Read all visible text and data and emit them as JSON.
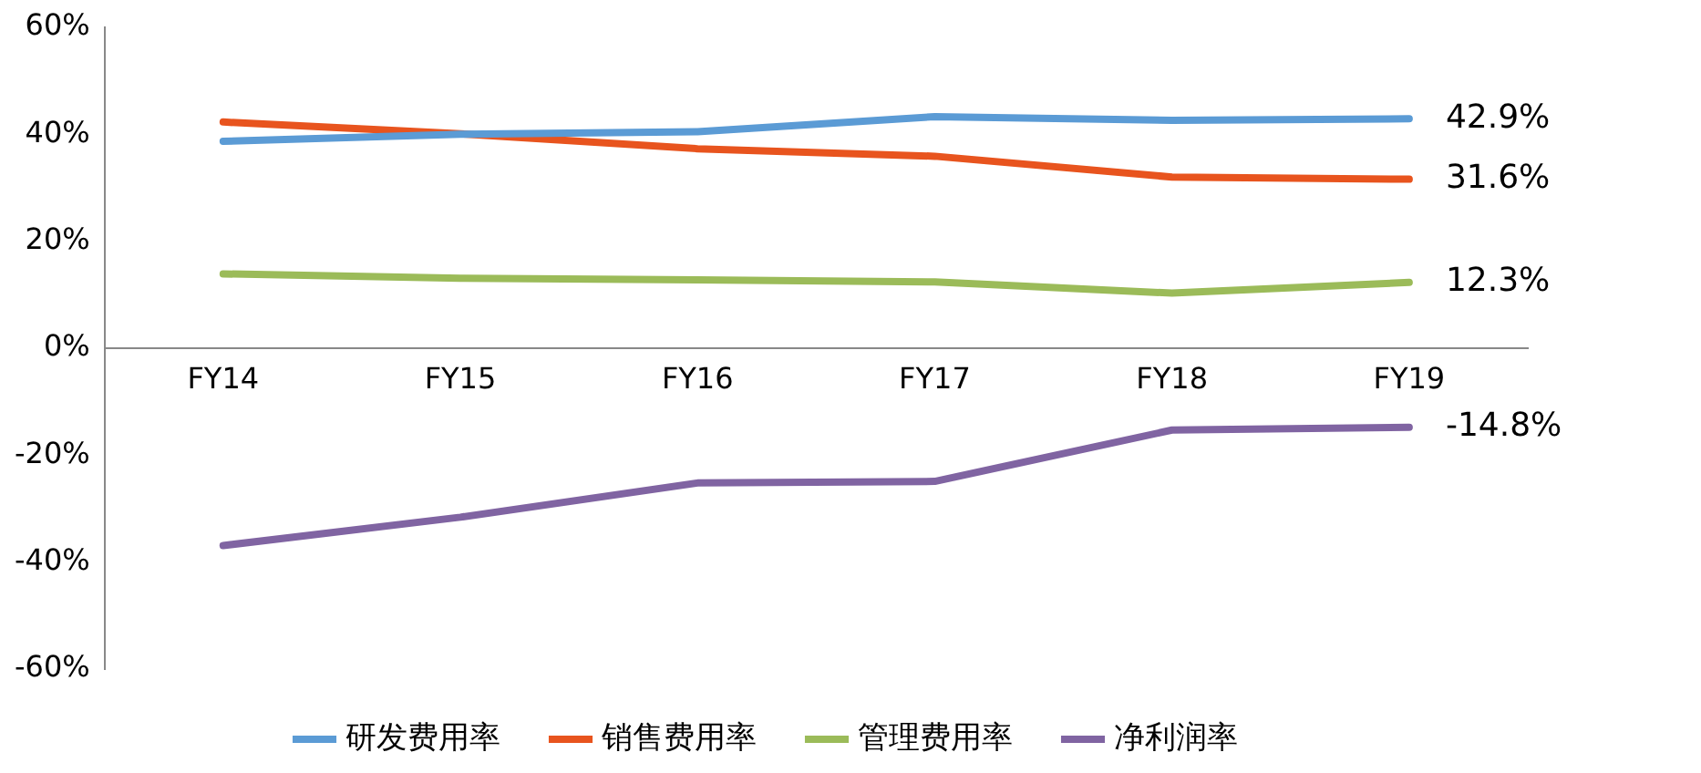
{
  "chart_data": {
    "type": "line",
    "categories": [
      "FY14",
      "FY15",
      "FY16",
      "FY17",
      "FY18",
      "FY19"
    ],
    "ylim": [
      -60,
      60
    ],
    "yticks": [
      {
        "value": -60,
        "label": "-60%"
      },
      {
        "value": -40,
        "label": "-40%"
      },
      {
        "value": -20,
        "label": "-20%"
      },
      {
        "value": 0,
        "label": "0%"
      },
      {
        "value": 20,
        "label": "20%"
      },
      {
        "value": 40,
        "label": "40%"
      },
      {
        "value": 60,
        "label": "60%"
      }
    ],
    "series": [
      {
        "name": "研发费用率",
        "color": "#5b9bd5",
        "values": [
          38.7,
          40,
          40.5,
          43.3,
          42.6,
          42.9
        ],
        "value_labels": [
          null,
          null,
          null,
          null,
          null,
          "42.9%"
        ]
      },
      {
        "name": "销售费用率",
        "color": "#e8541e",
        "values": [
          42.3,
          40.1,
          37.3,
          35.9,
          32,
          31.6
        ],
        "value_labels": [
          null,
          null,
          null,
          null,
          null,
          "31.6%"
        ]
      },
      {
        "name": "管理费用率",
        "color": "#9bbb59",
        "values": [
          13.9,
          13.1,
          12.8,
          12.4,
          10.3,
          12.3
        ],
        "value_labels": [
          null,
          null,
          null,
          null,
          null,
          "12.3%"
        ]
      },
      {
        "name": "净利润率",
        "color": "#8064a2",
        "values": [
          -36.9,
          -31.6,
          -25.2,
          -24.9,
          -15.3,
          -14.8
        ],
        "value_labels": [
          null,
          null,
          null,
          null,
          null,
          "-14.8%"
        ]
      }
    ],
    "grid": false,
    "legend": "bottom",
    "marker": "none",
    "line_style": "solid"
  }
}
